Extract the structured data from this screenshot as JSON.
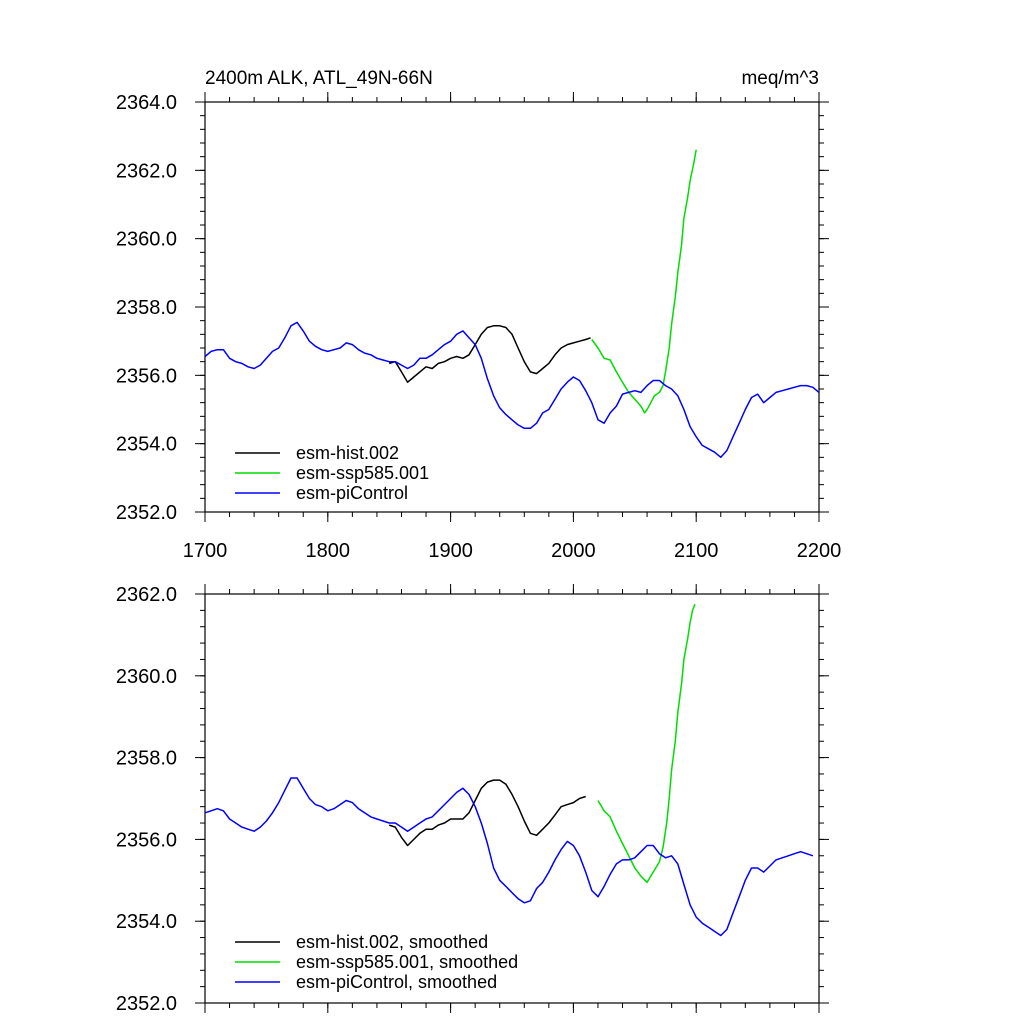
{
  "chart_data": [
    {
      "type": "line",
      "title_left": "2400m ALK, ATL_49N-66N",
      "title_right": "meq/m^3",
      "xlabel": "",
      "ylabel": "",
      "xlim": [
        1700,
        2200
      ],
      "ylim": [
        2352.0,
        2364.0
      ],
      "x_ticks": [
        1700,
        1800,
        1900,
        2000,
        2100,
        2200
      ],
      "x_tick_labels": [
        "1700",
        "1800",
        "1900",
        "2000",
        "2100",
        "2200"
      ],
      "y_ticks": [
        2352,
        2354,
        2356,
        2358,
        2360,
        2362,
        2364
      ],
      "y_tick_labels": [
        "2352.0",
        "2354.0",
        "2356.0",
        "2358.0",
        "2360.0",
        "2362.0",
        "2364.0"
      ],
      "legend_position": "bottom-left",
      "series": [
        {
          "name": "esm-hist.002",
          "color": "#000000",
          "x": [
            1850,
            1855,
            1860,
            1865,
            1870,
            1875,
            1880,
            1885,
            1890,
            1895,
            1900,
            1905,
            1910,
            1915,
            1920,
            1925,
            1930,
            1935,
            1940,
            1945,
            1950,
            1955,
            1960,
            1965,
            1970,
            1975,
            1980,
            1985,
            1990,
            1995,
            2000,
            2005,
            2010,
            2014
          ],
          "y": [
            2356.35,
            2356.4,
            2356.1,
            2355.8,
            2355.95,
            2356.1,
            2356.25,
            2356.2,
            2356.35,
            2356.4,
            2356.5,
            2356.55,
            2356.5,
            2356.6,
            2356.9,
            2357.2,
            2357.4,
            2357.45,
            2357.45,
            2357.4,
            2357.2,
            2356.8,
            2356.4,
            2356.1,
            2356.05,
            2356.2,
            2356.35,
            2356.6,
            2356.8,
            2356.9,
            2356.95,
            2357.0,
            2357.05,
            2357.1
          ]
        },
        {
          "name": "esm-ssp585.001",
          "color": "#00dd00",
          "x": [
            2015,
            2020,
            2025,
            2030,
            2035,
            2040,
            2045,
            2050,
            2055,
            2058,
            2060,
            2063,
            2066,
            2070,
            2073,
            2075,
            2078,
            2080,
            2083,
            2085,
            2088,
            2090,
            2093,
            2095,
            2098,
            2100
          ],
          "y": [
            2357.05,
            2356.8,
            2356.5,
            2356.45,
            2356.1,
            2355.8,
            2355.5,
            2355.3,
            2355.1,
            2354.9,
            2355.0,
            2355.2,
            2355.4,
            2355.5,
            2355.7,
            2356.1,
            2356.8,
            2357.5,
            2358.3,
            2359.0,
            2359.8,
            2360.6,
            2361.2,
            2361.7,
            2362.2,
            2362.6
          ]
        },
        {
          "name": "esm-piControl",
          "color": "#0000ff",
          "x": [
            1700,
            1705,
            1710,
            1715,
            1720,
            1725,
            1730,
            1735,
            1740,
            1745,
            1750,
            1755,
            1760,
            1765,
            1770,
            1775,
            1780,
            1785,
            1790,
            1795,
            1800,
            1805,
            1810,
            1815,
            1820,
            1825,
            1830,
            1835,
            1840,
            1845,
            1850,
            1855,
            1860,
            1865,
            1870,
            1875,
            1880,
            1885,
            1890,
            1895,
            1900,
            1905,
            1910,
            1915,
            1920,
            1925,
            1930,
            1935,
            1940,
            1945,
            1950,
            1955,
            1960,
            1965,
            1970,
            1975,
            1980,
            1985,
            1990,
            1995,
            2000,
            2005,
            2010,
            2015,
            2020,
            2025,
            2030,
            2035,
            2040,
            2045,
            2050,
            2055,
            2060,
            2065,
            2070,
            2075,
            2080,
            2085,
            2090,
            2095,
            2100,
            2105,
            2110,
            2115,
            2120,
            2125,
            2130,
            2135,
            2140,
            2145,
            2150,
            2155,
            2160,
            2165,
            2170,
            2175,
            2180,
            2185,
            2190,
            2195,
            2200
          ],
          "y": [
            2356.55,
            2356.7,
            2356.75,
            2356.75,
            2356.5,
            2356.4,
            2356.35,
            2356.25,
            2356.2,
            2356.3,
            2356.5,
            2356.7,
            2356.8,
            2357.1,
            2357.45,
            2357.55,
            2357.3,
            2357.0,
            2356.85,
            2356.75,
            2356.7,
            2356.75,
            2356.8,
            2356.95,
            2356.9,
            2356.75,
            2356.65,
            2356.6,
            2356.5,
            2356.45,
            2356.4,
            2356.4,
            2356.3,
            2356.2,
            2356.3,
            2356.5,
            2356.5,
            2356.6,
            2356.75,
            2356.9,
            2357.0,
            2357.2,
            2357.3,
            2357.1,
            2356.9,
            2356.5,
            2355.9,
            2355.4,
            2355.05,
            2354.85,
            2354.7,
            2354.55,
            2354.45,
            2354.45,
            2354.6,
            2354.9,
            2355.0,
            2355.3,
            2355.6,
            2355.8,
            2355.95,
            2355.85,
            2355.55,
            2355.2,
            2354.7,
            2354.6,
            2354.9,
            2355.1,
            2355.45,
            2355.5,
            2355.55,
            2355.5,
            2355.7,
            2355.85,
            2355.85,
            2355.7,
            2355.6,
            2355.4,
            2355.0,
            2354.5,
            2354.2,
            2353.95,
            2353.85,
            2353.75,
            2353.6,
            2353.8,
            2354.2,
            2354.6,
            2355.0,
            2355.35,
            2355.45,
            2355.2,
            2355.35,
            2355.5,
            2355.55,
            2355.6,
            2355.65,
            2355.7,
            2355.7,
            2355.65,
            2355.5
          ]
        }
      ]
    },
    {
      "type": "line",
      "title_left": "",
      "title_right": "",
      "xlabel": "",
      "ylabel": "",
      "xlim": [
        1700,
        2200
      ],
      "ylim": [
        2352.0,
        2362.0
      ],
      "x_ticks": [
        1700,
        1800,
        1900,
        2000,
        2100,
        2200
      ],
      "x_tick_labels": [],
      "y_ticks": [
        2352,
        2354,
        2356,
        2358,
        2360,
        2362
      ],
      "y_tick_labels": [
        "2352.0",
        "2354.0",
        "2356.0",
        "2358.0",
        "2360.0",
        "2362.0"
      ],
      "legend_position": "bottom-left",
      "series": [
        {
          "name": "esm-hist.002, smoothed",
          "color": "#000000",
          "x": [
            1850,
            1855,
            1860,
            1865,
            1870,
            1875,
            1880,
            1885,
            1890,
            1895,
            1900,
            1905,
            1910,
            1915,
            1920,
            1925,
            1930,
            1935,
            1940,
            1945,
            1950,
            1955,
            1960,
            1965,
            1970,
            1975,
            1980,
            1985,
            1990,
            1995,
            2000,
            2005,
            2010
          ],
          "y": [
            2356.35,
            2356.3,
            2356.05,
            2355.85,
            2356.0,
            2356.15,
            2356.25,
            2356.25,
            2356.35,
            2356.4,
            2356.5,
            2356.5,
            2356.5,
            2356.65,
            2356.95,
            2357.25,
            2357.4,
            2357.45,
            2357.45,
            2357.35,
            2357.1,
            2356.8,
            2356.45,
            2356.15,
            2356.1,
            2356.25,
            2356.4,
            2356.6,
            2356.8,
            2356.85,
            2356.9,
            2357.0,
            2357.05
          ]
        },
        {
          "name": "esm-ssp585.001, smoothed",
          "color": "#00dd00",
          "x": [
            2020,
            2025,
            2030,
            2035,
            2040,
            2045,
            2050,
            2055,
            2060,
            2065,
            2070,
            2073,
            2076,
            2078,
            2080,
            2083,
            2085,
            2088,
            2090,
            2093,
            2095,
            2097,
            2099
          ],
          "y": [
            2356.95,
            2356.7,
            2356.55,
            2356.2,
            2355.9,
            2355.6,
            2355.3,
            2355.1,
            2354.95,
            2355.2,
            2355.45,
            2355.8,
            2356.4,
            2357.0,
            2357.7,
            2358.4,
            2359.1,
            2359.8,
            2360.4,
            2360.9,
            2361.3,
            2361.6,
            2361.75
          ]
        },
        {
          "name": "esm-piControl, smoothed",
          "color": "#0000ff",
          "x": [
            1700,
            1705,
            1710,
            1715,
            1720,
            1725,
            1730,
            1735,
            1740,
            1745,
            1750,
            1755,
            1760,
            1765,
            1770,
            1775,
            1780,
            1785,
            1790,
            1795,
            1800,
            1805,
            1810,
            1815,
            1820,
            1825,
            1830,
            1835,
            1840,
            1845,
            1850,
            1855,
            1860,
            1865,
            1870,
            1875,
            1880,
            1885,
            1890,
            1895,
            1900,
            1905,
            1910,
            1915,
            1920,
            1925,
            1930,
            1935,
            1940,
            1945,
            1950,
            1955,
            1960,
            1965,
            1970,
            1975,
            1980,
            1985,
            1990,
            1995,
            2000,
            2005,
            2010,
            2015,
            2020,
            2025,
            2030,
            2035,
            2040,
            2045,
            2050,
            2055,
            2060,
            2065,
            2070,
            2075,
            2080,
            2085,
            2090,
            2095,
            2100,
            2105,
            2110,
            2115,
            2120,
            2125,
            2130,
            2135,
            2140,
            2145,
            2150,
            2155,
            2160,
            2165,
            2170,
            2175,
            2180,
            2185,
            2190,
            2195
          ],
          "y": [
            2356.65,
            2356.7,
            2356.75,
            2356.7,
            2356.5,
            2356.4,
            2356.3,
            2356.25,
            2356.2,
            2356.3,
            2356.45,
            2356.65,
            2356.9,
            2357.2,
            2357.5,
            2357.5,
            2357.25,
            2357.0,
            2356.85,
            2356.8,
            2356.7,
            2356.75,
            2356.85,
            2356.95,
            2356.9,
            2356.75,
            2356.65,
            2356.55,
            2356.5,
            2356.45,
            2356.4,
            2356.4,
            2356.3,
            2356.2,
            2356.3,
            2356.4,
            2356.5,
            2356.55,
            2356.7,
            2356.85,
            2357.0,
            2357.15,
            2357.25,
            2357.1,
            2356.8,
            2356.4,
            2355.9,
            2355.3,
            2355.0,
            2354.85,
            2354.7,
            2354.55,
            2354.45,
            2354.5,
            2354.8,
            2354.95,
            2355.2,
            2355.5,
            2355.75,
            2355.95,
            2355.85,
            2355.6,
            2355.2,
            2354.75,
            2354.6,
            2354.85,
            2355.15,
            2355.4,
            2355.5,
            2355.5,
            2355.55,
            2355.7,
            2355.85,
            2355.85,
            2355.65,
            2355.55,
            2355.6,
            2355.4,
            2354.9,
            2354.4,
            2354.1,
            2353.95,
            2353.85,
            2353.75,
            2353.65,
            2353.8,
            2354.2,
            2354.6,
            2355.0,
            2355.3,
            2355.3,
            2355.2,
            2355.35,
            2355.5,
            2355.55,
            2355.6,
            2355.65,
            2355.7,
            2355.65,
            2355.6
          ]
        }
      ]
    }
  ]
}
